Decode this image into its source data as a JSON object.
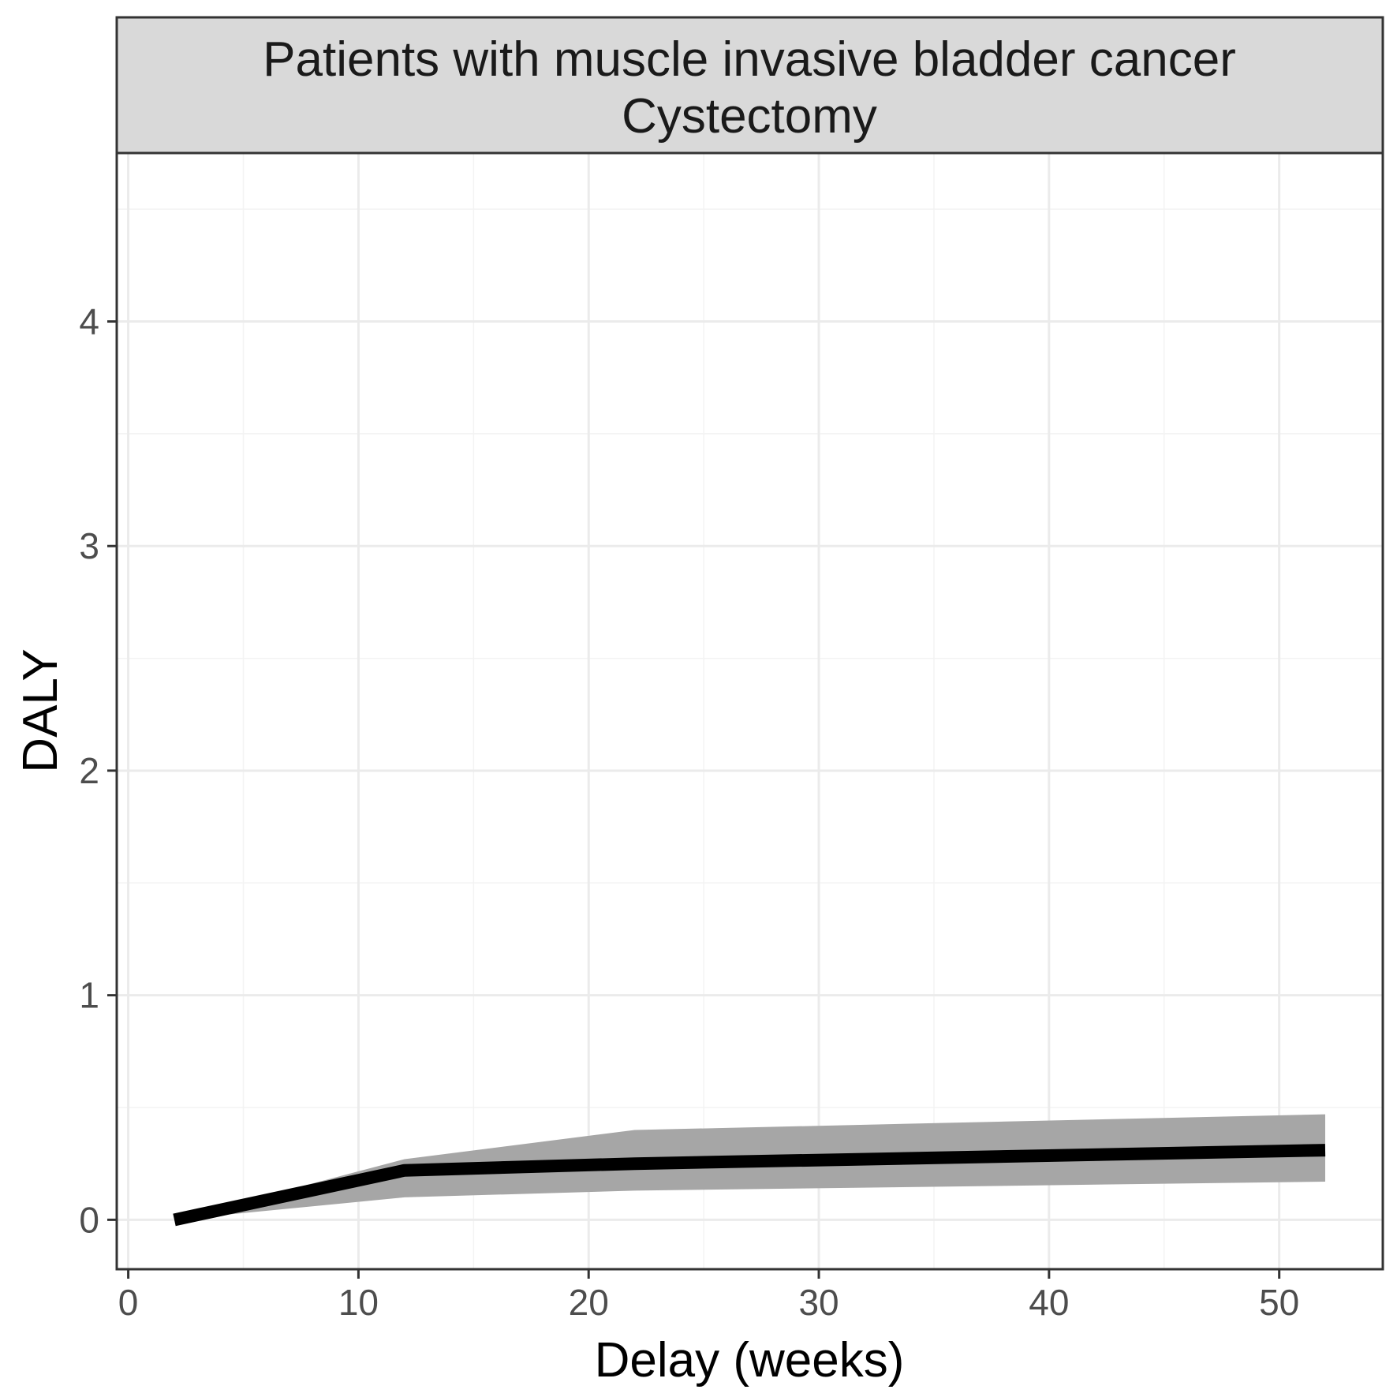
{
  "chart_data": {
    "type": "line",
    "facet_title_lines": [
      "Patients with muscle invasive bladder cancer",
      "Cystectomy"
    ],
    "xlabel": "Delay (weeks)",
    "ylabel": "DALY",
    "xlim": [
      -0.5,
      54.5
    ],
    "ylim": [
      -0.22,
      4.75
    ],
    "x_ticks": [
      0,
      10,
      20,
      30,
      40,
      50
    ],
    "y_ticks": [
      0,
      1,
      2,
      3,
      4
    ],
    "x_minor": [
      5,
      15,
      25,
      35,
      45
    ],
    "y_minor": [
      0.5,
      1.5,
      2.5,
      3.5,
      4.5
    ],
    "grid": true,
    "colors": {
      "line": "#000000",
      "ribbon": "#a6a6a6",
      "strip_fill": "#d9d9d9",
      "grid_major": "#ebebeb",
      "grid_minor": "#f3f3f3",
      "border": "#333333"
    },
    "series": [
      {
        "x": [
          2,
          12,
          22,
          52
        ],
        "y": [
          0,
          0.22,
          0.25,
          0.31
        ],
        "lower": [
          0,
          0.1,
          0.13,
          0.17
        ],
        "upper": [
          0,
          0.27,
          0.4,
          0.47
        ]
      }
    ]
  }
}
